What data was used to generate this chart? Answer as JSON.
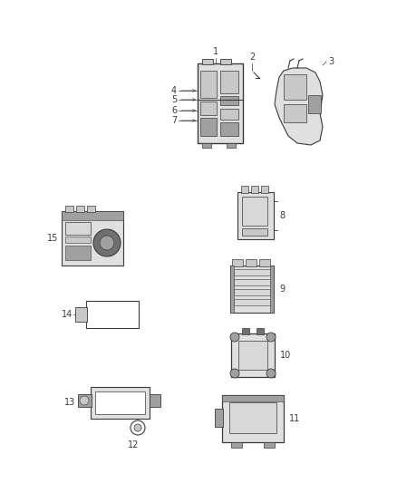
{
  "bg_color": "#ffffff",
  "fig_width": 4.38,
  "fig_height": 5.33,
  "dpi": 100,
  "cc": "#3a3a3a",
  "lc": "#3a3a3a",
  "gray1": "#c8c8c8",
  "gray2": "#e0e0e0",
  "gray3": "#a0a0a0",
  "gray4": "#707070",
  "gray5": "#d8d8d8"
}
